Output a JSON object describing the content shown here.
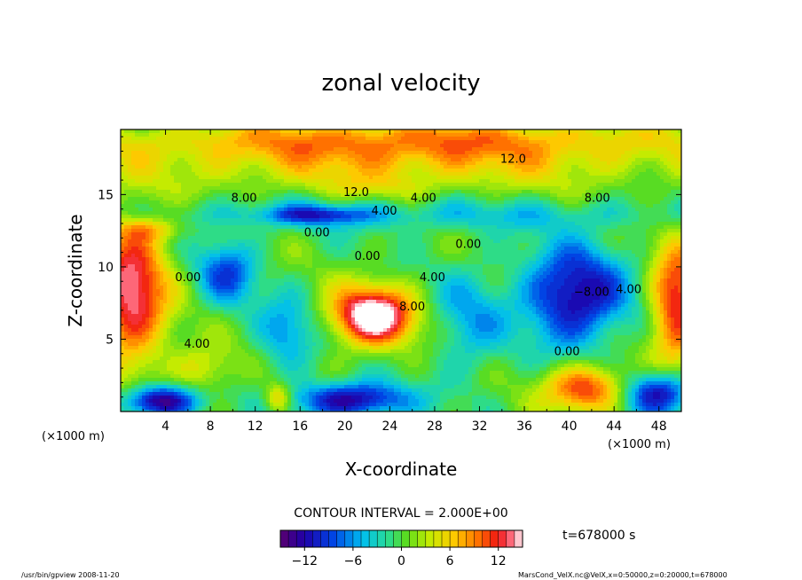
{
  "chart_data": {
    "type": "heatmap",
    "title": "zonal velocity",
    "xlabel": "X-coordinate",
    "ylabel": "Z-coordinate",
    "x_unit_label": "(×1000 m)",
    "y_unit_label": "(×1000 m)",
    "xlim": [
      0,
      50
    ],
    "ylim": [
      0,
      19.5
    ],
    "x_ticks": [
      4,
      8,
      12,
      16,
      20,
      24,
      28,
      32,
      36,
      40,
      44,
      48
    ],
    "y_ticks": [
      5,
      10,
      15
    ],
    "contour_interval_text": "CONTOUR INTERVAL = 2.000E+00",
    "time_text": "t=678000 s",
    "colorbar": {
      "min": -15,
      "max": 15,
      "ticks": [
        -12,
        -6,
        0,
        6,
        12
      ],
      "tick_labels": [
        "−12",
        "−6",
        "0",
        "6",
        "12"
      ]
    },
    "contour_labels": [
      {
        "text": "12.0",
        "x": 35.0,
        "z": 17.2
      },
      {
        "text": "12.0",
        "x": 21.0,
        "z": 14.9
      },
      {
        "text": "8.00",
        "x": 11.0,
        "z": 14.5
      },
      {
        "text": "8.00",
        "x": 42.5,
        "z": 14.5
      },
      {
        "text": "4.00",
        "x": 27.0,
        "z": 14.5
      },
      {
        "text": "4.00",
        "x": 23.5,
        "z": 13.6
      },
      {
        "text": "0.00",
        "x": 17.5,
        "z": 12.1
      },
      {
        "text": "0.00",
        "x": 22.0,
        "z": 10.5
      },
      {
        "text": "0.00",
        "x": 31.0,
        "z": 11.3
      },
      {
        "text": "0.00",
        "x": 6.0,
        "z": 9.0
      },
      {
        "text": "4.00",
        "x": 6.8,
        "z": 4.4
      },
      {
        "text": "8.00",
        "x": 26.0,
        "z": 7.0
      },
      {
        "text": "−8.00",
        "x": 42.0,
        "z": 8.0
      },
      {
        "text": "4.00",
        "x": 45.3,
        "z": 8.2
      },
      {
        "text": "0.00",
        "x": 39.8,
        "z": 3.9
      },
      {
        "text": "4.00",
        "x": 27.8,
        "z": 9.0
      }
    ],
    "features": [
      {
        "x": 25,
        "z": 18.8,
        "sx": 26,
        "sz": 1.5,
        "amp": 8
      },
      {
        "x": 25,
        "z": 16.9,
        "sx": 26,
        "sz": 1.8,
        "amp": 5
      },
      {
        "x": 22.5,
        "z": 15.5,
        "sx": 5,
        "sz": 0.8,
        "amp": 2
      },
      {
        "x": 25,
        "z": 13.6,
        "sx": 28,
        "sz": 1.1,
        "amp": -4
      },
      {
        "x": 17.5,
        "z": 13.6,
        "sx": 4.5,
        "sz": 0.6,
        "amp": -7
      },
      {
        "x": 22.5,
        "z": 6.6,
        "sx": 3.6,
        "sz": 2.0,
        "amp": 18
      },
      {
        "x": 1.0,
        "z": 8.2,
        "sx": 3.2,
        "sz": 5.0,
        "amp": 14
      },
      {
        "x": 49.6,
        "z": 7.5,
        "sx": 2.3,
        "sz": 4.2,
        "amp": 13
      },
      {
        "x": 41.5,
        "z": 1.6,
        "sx": 3.6,
        "sz": 1.6,
        "amp": 12
      },
      {
        "x": 40.5,
        "z": 8.0,
        "sx": 4.5,
        "sz": 3.3,
        "amp": -13
      },
      {
        "x": 9.5,
        "z": 9.6,
        "sx": 2.6,
        "sz": 2.3,
        "amp": -8
      },
      {
        "x": 14.8,
        "z": 5.3,
        "sx": 2.6,
        "sz": 2.6,
        "amp": -6
      },
      {
        "x": 31.0,
        "z": 6.2,
        "sx": 3.2,
        "sz": 3.8,
        "amp": -5
      },
      {
        "x": 3.5,
        "z": 0.7,
        "sx": 3.2,
        "sz": 1.1,
        "amp": -15
      },
      {
        "x": 20.5,
        "z": 0.8,
        "sx": 5.0,
        "sz": 1.2,
        "amp": -13
      },
      {
        "x": 48.0,
        "z": 1.3,
        "sx": 3.0,
        "sz": 1.5,
        "amp": -12
      },
      {
        "x": 14.0,
        "z": 0.9,
        "sx": 1.2,
        "sz": 1.0,
        "amp": 8
      },
      {
        "x": 7.5,
        "z": 3.0,
        "sx": 2.8,
        "sz": 1.7,
        "amp": 5
      },
      {
        "x": 2.5,
        "z": 12.6,
        "sx": 2.8,
        "sz": 0.8,
        "amp": 5
      }
    ]
  },
  "footer": {
    "left_text": "/usr/bin/gpview  2008-11-20",
    "right_text": "MarsCond_VelX.nc@VelX,x=0:50000,z=0:20000,t=678000"
  }
}
